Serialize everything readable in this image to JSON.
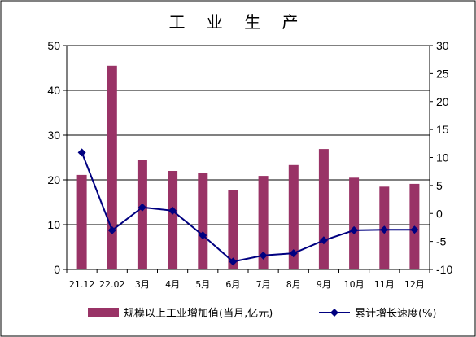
{
  "chart_data": {
    "type": "bar",
    "title": "工 业 生 产",
    "categories": [
      "21.12",
      "22.02",
      "3月",
      "4月",
      "5月",
      "6月",
      "7月",
      "8月",
      "9月",
      "10月",
      "11月",
      "12月"
    ],
    "series": [
      {
        "name": "规模以上工业增加值(当月,亿元)",
        "type": "bar",
        "axis": "left",
        "color": "#993366",
        "values": [
          21.1,
          45.5,
          24.5,
          22.0,
          21.6,
          17.8,
          20.9,
          23.3,
          26.9,
          20.5,
          18.5,
          19.1
        ]
      },
      {
        "name": "累计增长速度(%)",
        "type": "line",
        "axis": "right",
        "color": "#000080",
        "values": [
          10.9,
          -3.0,
          1.1,
          0.5,
          -3.9,
          -8.6,
          -7.5,
          -7.1,
          -4.8,
          -3.0,
          -2.9,
          -2.9
        ]
      }
    ],
    "y_left": {
      "min": 0,
      "max": 50,
      "ticks": [
        0,
        10,
        20,
        30,
        40,
        50
      ]
    },
    "y_right": {
      "min": -10,
      "max": 30,
      "ticks": [
        -10,
        -5,
        0,
        5,
        10,
        15,
        20,
        25,
        30
      ]
    },
    "grid": true,
    "legend_position": "bottom"
  }
}
